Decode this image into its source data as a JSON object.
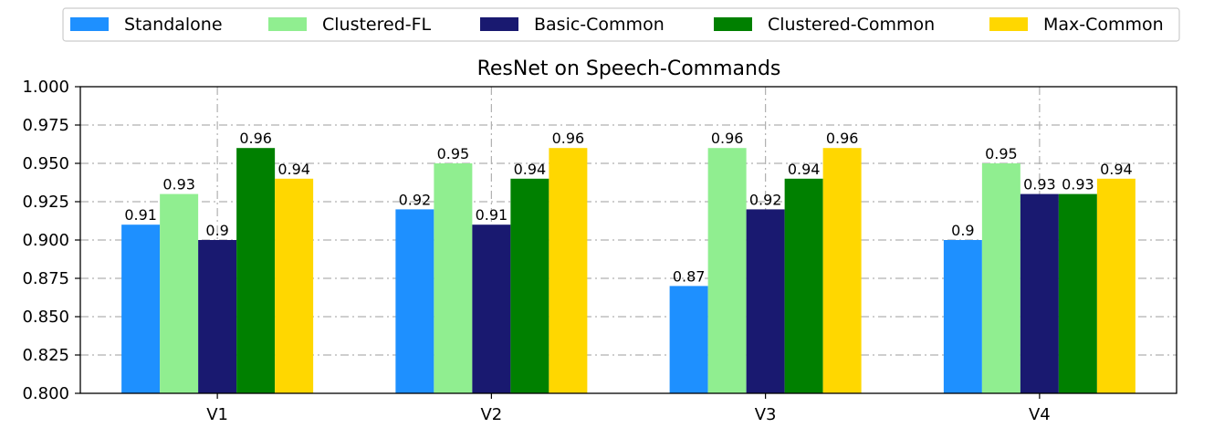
{
  "chart_data": {
    "type": "bar",
    "title": "ResNet on Speech-Commands",
    "xlabel": "",
    "ylabel": "",
    "categories": [
      "V1",
      "V2",
      "V3",
      "V4"
    ],
    "series": [
      {
        "name": "Standalone",
        "values": [
          0.91,
          0.92,
          0.87,
          0.9
        ],
        "labels": [
          "0.91",
          "0.92",
          "0.87",
          "0.9"
        ],
        "color": "#1e90ff"
      },
      {
        "name": "Clustered-FL",
        "values": [
          0.93,
          0.95,
          0.96,
          0.95
        ],
        "labels": [
          "0.93",
          "0.95",
          "0.96",
          "0.95"
        ],
        "color": "#90ee90"
      },
      {
        "name": "Basic-Common",
        "values": [
          0.9,
          0.91,
          0.92,
          0.93
        ],
        "labels": [
          "0.9",
          "0.91",
          "0.92",
          "0.93"
        ],
        "color": "#191970"
      },
      {
        "name": "Clustered-Common",
        "values": [
          0.96,
          0.94,
          0.94,
          0.93
        ],
        "labels": [
          "0.96",
          "0.94",
          "0.94",
          "0.93"
        ],
        "color": "#008000"
      },
      {
        "name": "Max-Common",
        "values": [
          0.94,
          0.96,
          0.96,
          0.94
        ],
        "labels": [
          "0.94",
          "0.96",
          "0.96",
          "0.94"
        ],
        "color": "#ffd700"
      }
    ],
    "ylim": [
      0.8,
      1.0
    ],
    "yticks": [
      0.8,
      0.825,
      0.85,
      0.875,
      0.9,
      0.925,
      0.95,
      0.975,
      1.0
    ],
    "ytick_labels": [
      "0.800",
      "0.825",
      "0.850",
      "0.875",
      "0.900",
      "0.925",
      "0.950",
      "0.975",
      "1.000"
    ],
    "grid": true,
    "legend_position": "top"
  }
}
